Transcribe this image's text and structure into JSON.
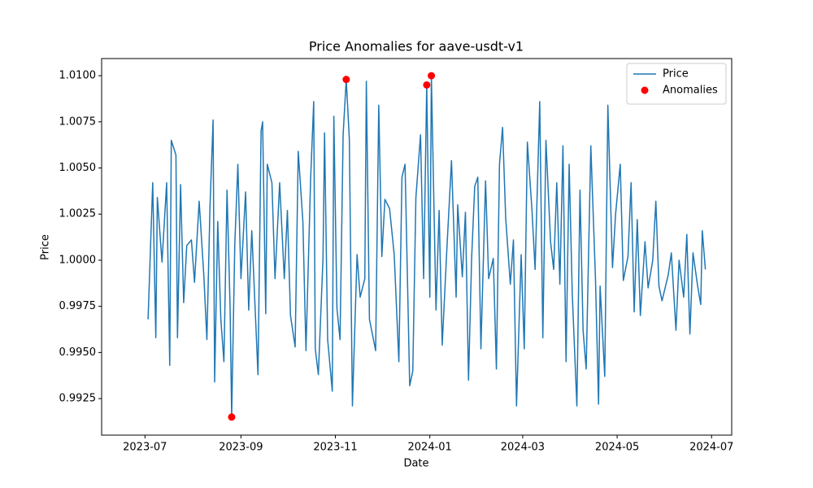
{
  "chart_data": {
    "type": "line",
    "title": "Price Anomalies for aave-usdt-v1",
    "xlabel": "Date",
    "ylabel": "Price",
    "xlim": [
      "2023-06-03",
      "2024-07-14"
    ],
    "xticks": [
      {
        "value": "2023-07-01",
        "label": "2023-07"
      },
      {
        "value": "2023-09-01",
        "label": "2023-09"
      },
      {
        "value": "2023-11-01",
        "label": "2023-11"
      },
      {
        "value": "2024-01-01",
        "label": "2024-01"
      },
      {
        "value": "2024-03-01",
        "label": "2024-03"
      },
      {
        "value": "2024-05-01",
        "label": "2024-05"
      },
      {
        "value": "2024-07-01",
        "label": "2024-07"
      }
    ],
    "ylim": [
      0.99052,
      1.01093
    ],
    "yticks": [
      {
        "value": 0.9925,
        "label": "0.9925"
      },
      {
        "value": 0.995,
        "label": "0.9950"
      },
      {
        "value": 0.9975,
        "label": "0.9975"
      },
      {
        "value": 1.0,
        "label": "1.0000"
      },
      {
        "value": 1.0025,
        "label": "1.0025"
      },
      {
        "value": 1.005,
        "label": "1.0050"
      },
      {
        "value": 1.0075,
        "label": "1.0075"
      },
      {
        "value": 1.01,
        "label": "1.0100"
      }
    ],
    "legend": "upper right",
    "grid": false,
    "series": [
      {
        "name": "Price",
        "type": "line",
        "color": "#1f77b4",
        "x": [
          "2023-07-03",
          "2023-07-06",
          "2023-07-08",
          "2023-07-09",
          "2023-07-12",
          "2023-07-15",
          "2023-07-17",
          "2023-07-18",
          "2023-07-21",
          "2023-07-22",
          "2023-07-24",
          "2023-07-26",
          "2023-07-28",
          "2023-07-31",
          "2023-08-02",
          "2023-08-05",
          "2023-08-08",
          "2023-08-10",
          "2023-08-12",
          "2023-08-14",
          "2023-08-15",
          "2023-08-17",
          "2023-08-19",
          "2023-08-21",
          "2023-08-23",
          "2023-08-25",
          "2023-08-26",
          "2023-08-28",
          "2023-08-30",
          "2023-09-01",
          "2023-09-04",
          "2023-09-06",
          "2023-09-08",
          "2023-09-12",
          "2023-09-14",
          "2023-09-15",
          "2023-09-17",
          "2023-09-18",
          "2023-09-21",
          "2023-09-23",
          "2023-09-26",
          "2023-09-29",
          "2023-10-01",
          "2023-10-03",
          "2023-10-06",
          "2023-10-08",
          "2023-10-11",
          "2023-10-13",
          "2023-10-16",
          "2023-10-18",
          "2023-10-19",
          "2023-10-21",
          "2023-10-24",
          "2023-10-25",
          "2023-10-27",
          "2023-10-30",
          "2023-10-31",
          "2023-11-02",
          "2023-11-04",
          "2023-11-06",
          "2023-11-08",
          "2023-11-10",
          "2023-11-12",
          "2023-11-15",
          "2023-11-17",
          "2023-11-20",
          "2023-11-21",
          "2023-11-23",
          "2023-11-27",
          "2023-11-29",
          "2023-12-01",
          "2023-12-03",
          "2023-12-06",
          "2023-12-09",
          "2023-12-12",
          "2023-12-14",
          "2023-12-16",
          "2023-12-19",
          "2023-12-21",
          "2023-12-23",
          "2023-12-26",
          "2023-12-28",
          "2023-12-30",
          "2024-01-01",
          "2024-01-02",
          "2024-01-05",
          "2024-01-07",
          "2024-01-09",
          "2024-01-12",
          "2024-01-15",
          "2024-01-18",
          "2024-01-19",
          "2024-01-22",
          "2024-01-24",
          "2024-01-26",
          "2024-01-28",
          "2024-01-30",
          "2024-02-01",
          "2024-02-03",
          "2024-02-06",
          "2024-02-08",
          "2024-02-11",
          "2024-02-13",
          "2024-02-15",
          "2024-02-17",
          "2024-02-19",
          "2024-02-22",
          "2024-02-24",
          "2024-02-26",
          "2024-02-29",
          "2024-03-02",
          "2024-03-04",
          "2024-03-07",
          "2024-03-09",
          "2024-03-12",
          "2024-03-14",
          "2024-03-16",
          "2024-03-19",
          "2024-03-21",
          "2024-03-23",
          "2024-03-25",
          "2024-03-27",
          "2024-03-29",
          "2024-03-31",
          "2024-04-02",
          "2024-04-05",
          "2024-04-07",
          "2024-04-09",
          "2024-04-11",
          "2024-04-14",
          "2024-04-17",
          "2024-04-19",
          "2024-04-20",
          "2024-04-23",
          "2024-04-25",
          "2024-04-28",
          "2024-04-30",
          "2024-05-03",
          "2024-05-05",
          "2024-05-08",
          "2024-05-10",
          "2024-05-12",
          "2024-05-14",
          "2024-05-16",
          "2024-05-19",
          "2024-05-21",
          "2024-05-24",
          "2024-05-26",
          "2024-05-28",
          "2024-05-30",
          "2024-06-03",
          "2024-06-05",
          "2024-06-08",
          "2024-06-10",
          "2024-06-13",
          "2024-06-15",
          "2024-06-17",
          "2024-06-19",
          "2024-06-22",
          "2024-06-24",
          "2024-06-25",
          "2024-06-27"
        ],
        "values": [
          0.9968,
          1.0042,
          0.9958,
          1.0034,
          0.9999,
          1.0042,
          0.9943,
          1.0065,
          1.0057,
          0.9958,
          1.0041,
          0.9977,
          1.0008,
          1.0011,
          0.9988,
          1.0032,
          0.9992,
          0.9957,
          1.0029,
          1.0076,
          0.9934,
          1.0021,
          0.9968,
          0.9945,
          1.0038,
          0.9974,
          0.9915,
          1.0008,
          1.0052,
          0.999,
          1.0037,
          0.9973,
          1.0016,
          0.9938,
          1.007,
          1.0075,
          0.9971,
          1.0052,
          1.0042,
          0.999,
          1.0042,
          0.999,
          1.0027,
          0.997,
          0.9953,
          1.0059,
          1.0021,
          0.9951,
          1.0044,
          1.0086,
          0.9952,
          0.9938,
          1.0001,
          1.0069,
          0.9957,
          0.9929,
          1.0078,
          0.9974,
          0.9957,
          1.0068,
          1.0098,
          1.0066,
          0.9921,
          1.0003,
          0.998,
          0.999,
          1.0097,
          0.9968,
          0.9951,
          1.0084,
          1.0002,
          1.0033,
          1.0028,
          1.0003,
          0.9945,
          1.0045,
          1.0052,
          0.9932,
          0.994,
          1.0034,
          1.0068,
          0.999,
          1.0095,
          0.998,
          1.01,
          0.9973,
          1.0027,
          0.9954,
          1.0006,
          1.0054,
          0.998,
          1.003,
          0.9991,
          1.0026,
          0.9935,
          1.0001,
          1.004,
          1.0045,
          0.9952,
          1.0043,
          0.999,
          1.0001,
          0.9941,
          1.0052,
          1.0072,
          1.0023,
          0.9987,
          1.0011,
          0.9921,
          1.0003,
          0.9952,
          1.0064,
          1.0027,
          0.9995,
          1.0086,
          0.9958,
          1.0065,
          1.001,
          0.9995,
          1.0042,
          0.9987,
          1.0062,
          0.9945,
          1.0052,
          0.9982,
          0.9921,
          1.0038,
          0.9962,
          0.9941,
          1.0062,
          0.999,
          0.9922,
          0.9986,
          0.9937,
          1.0084,
          0.9996,
          1.0025,
          1.0052,
          0.9989,
          1.0002,
          1.0042,
          0.9972,
          1.0022,
          0.997,
          1.001,
          0.9985,
          1.0,
          1.0032,
          0.9986,
          0.9978,
          0.9992,
          1.0004,
          0.9962,
          1.0,
          0.998,
          1.0014,
          0.996,
          1.0004,
          0.9986,
          0.9976,
          1.0016,
          0.9995
        ]
      },
      {
        "name": "Anomalies",
        "type": "scatter",
        "color": "#ff0000",
        "x": [
          "2023-08-26",
          "2023-11-08",
          "2023-12-30",
          "2024-01-02"
        ],
        "values": [
          0.9915,
          1.0098,
          1.0095,
          1.01
        ]
      }
    ]
  }
}
